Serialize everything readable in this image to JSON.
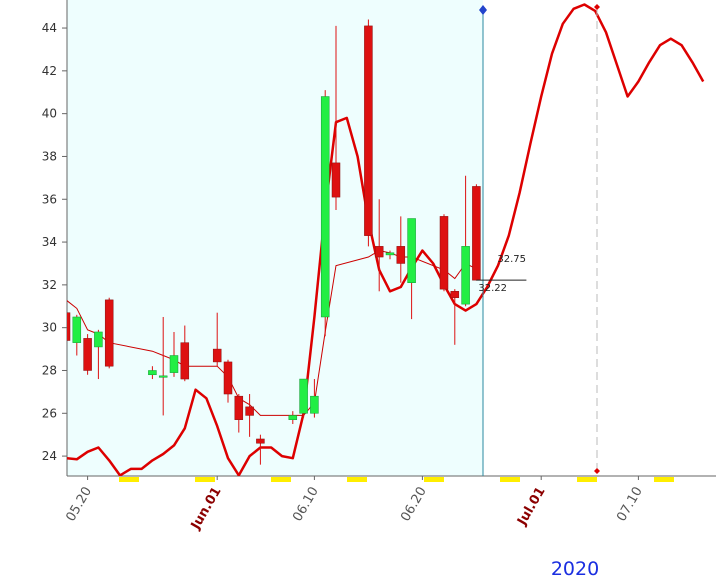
{
  "chart_data": {
    "type": "candlestick",
    "candles": {
      "x": [
        "05.18",
        "05.19",
        "05.20",
        "05.21",
        "05.22",
        "05.26",
        "05.27",
        "05.28",
        "05.29",
        "06.01",
        "06.02",
        "06.03",
        "06.04",
        "06.05",
        "06.08",
        "06.09",
        "06.10",
        "06.11",
        "06.12",
        "06.15",
        "06.16",
        "06.17",
        "06.18",
        "06.19",
        "06.22",
        "06.23",
        "06.24",
        "06.25"
      ],
      "open": [
        30.7,
        29.3,
        29.5,
        29.1,
        31.3,
        27.8,
        27.7,
        27.9,
        29.3,
        29.0,
        28.4,
        26.8,
        26.3,
        24.8,
        25.7,
        26.0,
        26.0,
        30.5,
        37.7,
        44.1,
        33.8,
        33.4,
        33.8,
        32.1,
        35.2,
        31.7,
        31.1,
        36.6
      ],
      "high": [
        31.0,
        30.6,
        29.7,
        29.9,
        31.4,
        28.2,
        30.5,
        29.8,
        30.1,
        30.7,
        28.5,
        26.9,
        26.9,
        25.0,
        26.1,
        27.6,
        27.6,
        41.1,
        44.1,
        44.4,
        36.0,
        33.6,
        35.2,
        35.1,
        35.3,
        31.8,
        37.1,
        36.7
      ],
      "low": [
        29.0,
        28.7,
        27.8,
        27.6,
        28.1,
        27.6,
        25.9,
        27.7,
        27.5,
        28.2,
        26.5,
        25.1,
        24.9,
        23.6,
        25.5,
        25.8,
        25.8,
        29.6,
        35.5,
        33.8,
        31.7,
        33.2,
        32.1,
        30.4,
        31.7,
        29.2,
        31.0,
        32.2
      ],
      "close": [
        29.4,
        30.5,
        28.0,
        29.8,
        28.2,
        28.0,
        27.75,
        28.7,
        27.6,
        28.4,
        26.9,
        25.7,
        25.9,
        24.6,
        25.9,
        27.6,
        26.8,
        40.8,
        36.1,
        34.3,
        33.3,
        33.5,
        33.0,
        35.1,
        31.8,
        31.4,
        33.8,
        32.22
      ],
      "up_color": "#22ee44",
      "down_color": "#dd1111"
    },
    "ma": {
      "color": "#cc0000",
      "values": [
        31.3,
        30.9,
        29.9,
        29.7,
        29.3,
        28.9,
        28.7,
        28.5,
        28.2,
        28.2,
        27.7,
        26.7,
        26.4,
        25.9,
        25.9,
        25.9,
        26.5,
        29.8,
        32.9,
        33.3,
        33.6,
        33.5,
        33.3,
        33.3,
        32.7,
        32.3,
        33.0,
        32.75
      ]
    },
    "curve": {
      "color": "#dd0000",
      "x": [
        "05.18",
        "05.19",
        "05.20",
        "05.21",
        "05.22",
        "05.23",
        "05.24",
        "05.25",
        "05.26",
        "05.27",
        "05.28",
        "05.29",
        "05.30",
        "05.31",
        "06.01",
        "06.02",
        "06.03",
        "06.04",
        "06.05",
        "06.06",
        "06.07",
        "06.08",
        "06.09",
        "06.10",
        "06.11",
        "06.12",
        "06.13",
        "06.14",
        "06.15",
        "06.16",
        "06.17",
        "06.18",
        "06.19",
        "06.20",
        "06.21",
        "06.22",
        "06.23",
        "06.24",
        "06.25",
        "06.26",
        "06.27",
        "06.28",
        "06.29",
        "06.30",
        "07.01",
        "07.02",
        "07.03",
        "07.04",
        "07.05",
        "07.06",
        "07.07",
        "07.08",
        "07.09",
        "07.10",
        "07.11",
        "07.12",
        "07.13",
        "07.14",
        "07.15",
        "07.16"
      ],
      "values": [
        23.9,
        23.85,
        24.2,
        24.4,
        23.8,
        23.1,
        23.4,
        23.4,
        23.8,
        24.1,
        24.5,
        25.3,
        27.1,
        26.7,
        25.4,
        23.9,
        23.1,
        24.0,
        24.4,
        24.4,
        24.0,
        23.9,
        26.0,
        30.5,
        35.5,
        39.6,
        39.8,
        38.0,
        35.0,
        32.7,
        31.7,
        31.9,
        32.8,
        33.6,
        33.0,
        32.0,
        31.1,
        30.8,
        31.1,
        31.9,
        32.9,
        34.3,
        36.3,
        38.6,
        40.8,
        42.8,
        44.2,
        44.9,
        45.1,
        44.8,
        43.8,
        42.3,
        40.8,
        41.5,
        42.4,
        43.2,
        43.5,
        43.2,
        42.4,
        41.5
      ]
    },
    "xlim": [
      "05.18",
      "07.17"
    ],
    "xticks": [
      "05.20",
      {
        "value": "06.01",
        "label": "Jun.01"
      },
      "06.10",
      "06.20",
      {
        "value": "07.01",
        "label": "Jul.01"
      },
      "07.10"
    ],
    "ylim": [
      23.07,
      45.31
    ],
    "yticks": [
      24,
      26,
      28,
      30,
      32,
      34,
      36,
      38,
      40,
      42,
      44
    ],
    "year_label": "2020"
  }
}
